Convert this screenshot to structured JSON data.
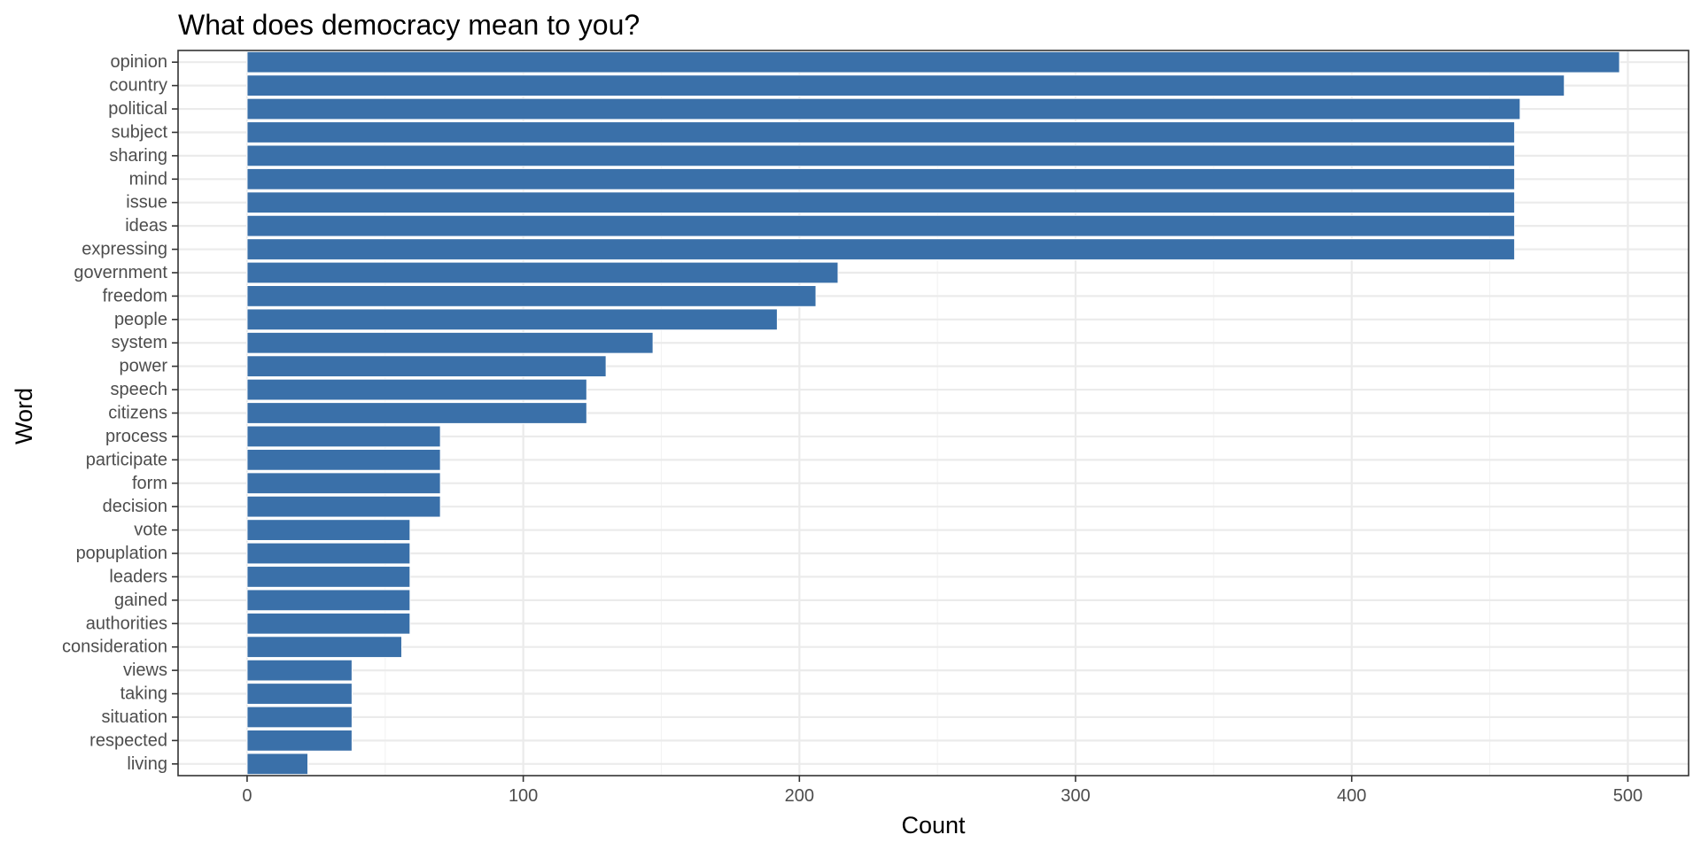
{
  "chart_data": {
    "type": "bar",
    "orientation": "horizontal",
    "title": "What does democracy mean to you?",
    "xlabel": "Count",
    "ylabel": "Word",
    "categories": [
      "opinion",
      "country",
      "political",
      "subject",
      "sharing",
      "mind",
      "issue",
      "ideas",
      "expressing",
      "government",
      "freedom",
      "people",
      "system",
      "power",
      "speech",
      "citizens",
      "process",
      "participate",
      "form",
      "decision",
      "vote",
      "popuplation",
      "leaders",
      "gained",
      "authorities",
      "consideration",
      "views",
      "taking",
      "situation",
      "respected",
      "living"
    ],
    "values": [
      497,
      477,
      461,
      459,
      459,
      459,
      459,
      459,
      459,
      214,
      206,
      192,
      147,
      130,
      123,
      123,
      70,
      70,
      70,
      70,
      59,
      59,
      59,
      59,
      59,
      56,
      38,
      38,
      38,
      38,
      22
    ],
    "xlim": [
      -25,
      522
    ],
    "xticks": [
      0,
      100,
      200,
      300,
      400,
      500
    ],
    "xtick_labels": [
      "0",
      "100",
      "200",
      "300",
      "400",
      "500"
    ],
    "grid": true,
    "legend": "none",
    "colors": {
      "bar": "#3a70a9",
      "bar_outline": "#ffffff",
      "panel_border": "#333333",
      "grid_major": "#ebebeb",
      "grid_minor": "#f3f3f3"
    }
  }
}
